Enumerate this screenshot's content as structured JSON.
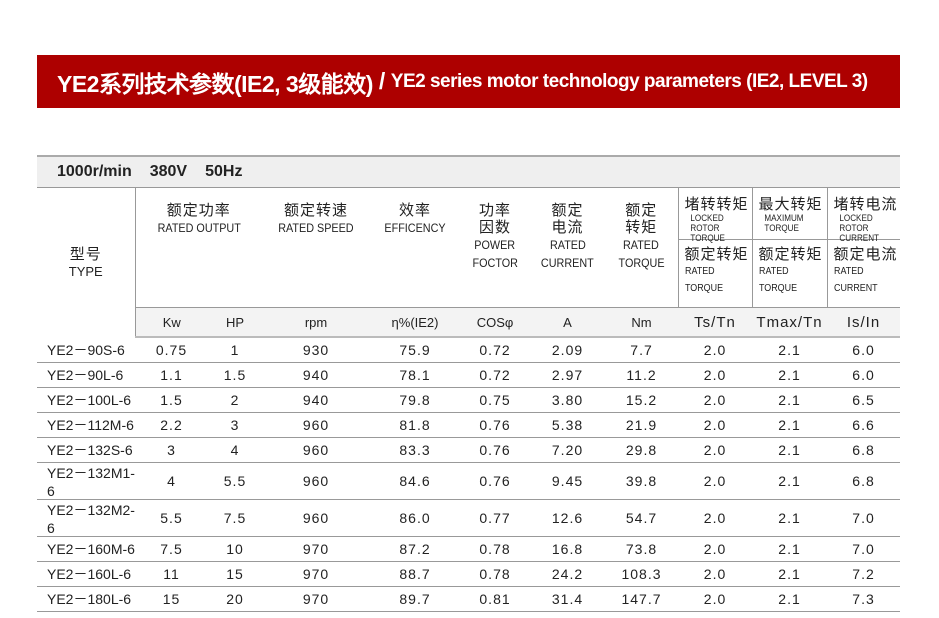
{
  "title": {
    "cn": "YE2系列技术参数(IE2, 3级能效)",
    "sep": "/",
    "en": "YE2 series motor technology parameters (IE2, LEVEL 3)"
  },
  "band": {
    "speed": "1000r/min",
    "voltage": "380V",
    "freq": "50Hz"
  },
  "colors": {
    "title_bg": "#ad0000",
    "band_bg": "#efefef"
  },
  "headers": {
    "type": {
      "cn": "型号",
      "en": "TYPE"
    },
    "output": {
      "cn": "额定功率",
      "en": "RATED OUTPUT"
    },
    "speed": {
      "cn": "额定转速",
      "en": "RATED SPEED"
    },
    "eff": {
      "cn": "效率",
      "en": "EFFICENCY"
    },
    "pf": {
      "cn1": "功率",
      "cn2": "因数",
      "en1": "POWER",
      "en2": "FOCTOR"
    },
    "current": {
      "cn1": "额定",
      "cn2": "电流",
      "en1": "RATED",
      "en2": "CURRENT"
    },
    "torque": {
      "cn1": "额定",
      "cn2": "转矩",
      "en1": "RATED",
      "en2": "TORQUE"
    },
    "ts": {
      "top_cn": "堵转转矩",
      "top_en1": "LOCKED",
      "top_en2": "ROTOR TORQUE",
      "bot_cn": "额定转矩",
      "bot_en": "RATED TORQUE"
    },
    "tmax": {
      "top_cn": "最大转矩",
      "top_en1": "MAXIMUM",
      "top_en2": "TORQUE",
      "bot_cn": "额定转矩",
      "bot_en": "RATED TORQUE"
    },
    "is": {
      "top_cn": "堵转电流",
      "top_en1": "LOCKED",
      "top_en2": "ROTOR CURRENT",
      "bot_cn": "额定电流",
      "bot_en": "RATED CURRENT"
    }
  },
  "units": [
    "Kw",
    "HP",
    "rpm",
    "η%(IE2)",
    "COSφ",
    "A",
    "Nm",
    "Ts/Tn",
    "Tmax/Tn",
    "Is/In"
  ],
  "rows": [
    [
      "YE2－90S-6",
      "0.75",
      "1",
      "930",
      "75.9",
      "0.72",
      "2.09",
      "7.7",
      "2.0",
      "2.1",
      "6.0"
    ],
    [
      "YE2－90L-6",
      "1.1",
      "1.5",
      "940",
      "78.1",
      "0.72",
      "2.97",
      "11.2",
      "2.0",
      "2.1",
      "6.0"
    ],
    [
      "YE2－100L-6",
      "1.5",
      "2",
      "940",
      "79.8",
      "0.75",
      "3.80",
      "15.2",
      "2.0",
      "2.1",
      "6.5"
    ],
    [
      "YE2－112M-6",
      "2.2",
      "3",
      "960",
      "81.8",
      "0.76",
      "5.38",
      "21.9",
      "2.0",
      "2.1",
      "6.6"
    ],
    [
      "YE2－132S-6",
      "3",
      "4",
      "960",
      "83.3",
      "0.76",
      "7.20",
      "29.8",
      "2.0",
      "2.1",
      "6.8"
    ],
    [
      "YE2－132M1-6",
      "4",
      "5.5",
      "960",
      "84.6",
      "0.76",
      "9.45",
      "39.8",
      "2.0",
      "2.1",
      "6.8"
    ],
    [
      "YE2－132M2-6",
      "5.5",
      "7.5",
      "960",
      "86.0",
      "0.77",
      "12.6",
      "54.7",
      "2.0",
      "2.1",
      "7.0"
    ],
    [
      "YE2－160M-6",
      "7.5",
      "10",
      "970",
      "87.2",
      "0.78",
      "16.8",
      "73.8",
      "2.0",
      "2.1",
      "7.0"
    ],
    [
      "YE2－160L-6",
      "11",
      "15",
      "970",
      "88.7",
      "0.78",
      "24.2",
      "108.3",
      "2.0",
      "2.1",
      "7.2"
    ],
    [
      "YE2－180L-6",
      "15",
      "20",
      "970",
      "89.7",
      "0.81",
      "31.4",
      "147.7",
      "2.0",
      "2.1",
      "7.3"
    ]
  ]
}
